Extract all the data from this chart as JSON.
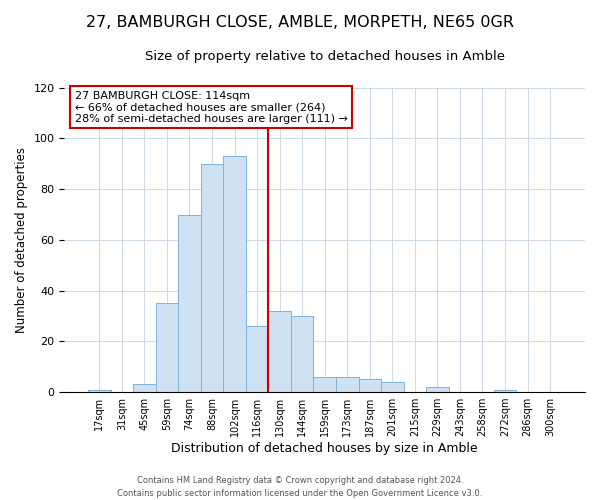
{
  "title": "27, BAMBURGH CLOSE, AMBLE, MORPETH, NE65 0GR",
  "subtitle": "Size of property relative to detached houses in Amble",
  "xlabel": "Distribution of detached houses by size in Amble",
  "ylabel": "Number of detached properties",
  "bar_labels": [
    "17sqm",
    "31sqm",
    "45sqm",
    "59sqm",
    "74sqm",
    "88sqm",
    "102sqm",
    "116sqm",
    "130sqm",
    "144sqm",
    "159sqm",
    "173sqm",
    "187sqm",
    "201sqm",
    "215sqm",
    "229sqm",
    "243sqm",
    "258sqm",
    "272sqm",
    "286sqm",
    "300sqm"
  ],
  "bar_heights": [
    1,
    0,
    3,
    35,
    70,
    90,
    93,
    26,
    32,
    30,
    6,
    6,
    5,
    4,
    0,
    2,
    0,
    0,
    1,
    0,
    0
  ],
  "bar_color": "#cfe2f3",
  "bar_edgecolor": "#7fb3d9",
  "vline_x": 7.5,
  "vline_color": "#cc0000",
  "annotation_line1": "27 BAMBURGH CLOSE: 114sqm",
  "annotation_line2": "← 66% of detached houses are smaller (264)",
  "annotation_line3": "28% of semi-detached houses are larger (111) →",
  "annotation_box_edgecolor": "#cc0000",
  "ylim": [
    0,
    120
  ],
  "yticks": [
    0,
    20,
    40,
    60,
    80,
    100,
    120
  ],
  "footer_line1": "Contains HM Land Registry data © Crown copyright and database right 2024.",
  "footer_line2": "Contains public sector information licensed under the Open Government Licence v3.0.",
  "background_color": "#ffffff",
  "grid_color": "#d0dce8",
  "title_fontsize": 11.5,
  "subtitle_fontsize": 9.5,
  "ylabel_fontsize": 8.5,
  "xlabel_fontsize": 9
}
